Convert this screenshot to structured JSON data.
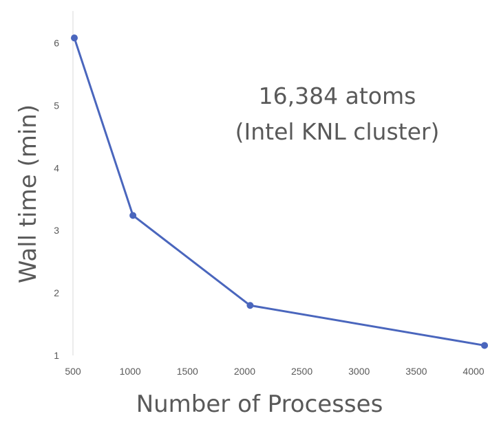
{
  "chart_data": {
    "type": "line",
    "title": "",
    "annotation_lines": [
      "16,384 atoms",
      "(Intel KNL cluster)"
    ],
    "xlabel": "Number of Processes",
    "ylabel": "Wall time (min)",
    "xlim": [
      500,
      4000
    ],
    "ylim": [
      1,
      6
    ],
    "x_ticks": [
      500,
      1000,
      1500,
      2000,
      2500,
      3000,
      3500,
      4000
    ],
    "y_ticks": [
      1,
      2,
      3,
      4,
      5,
      6
    ],
    "grid": false,
    "legend": "none",
    "series": [
      {
        "x": [
          512,
          1024,
          2048,
          4096
        ],
        "y": [
          6.08,
          3.24,
          1.8,
          1.16
        ],
        "color": "#4a66bd"
      }
    ]
  }
}
